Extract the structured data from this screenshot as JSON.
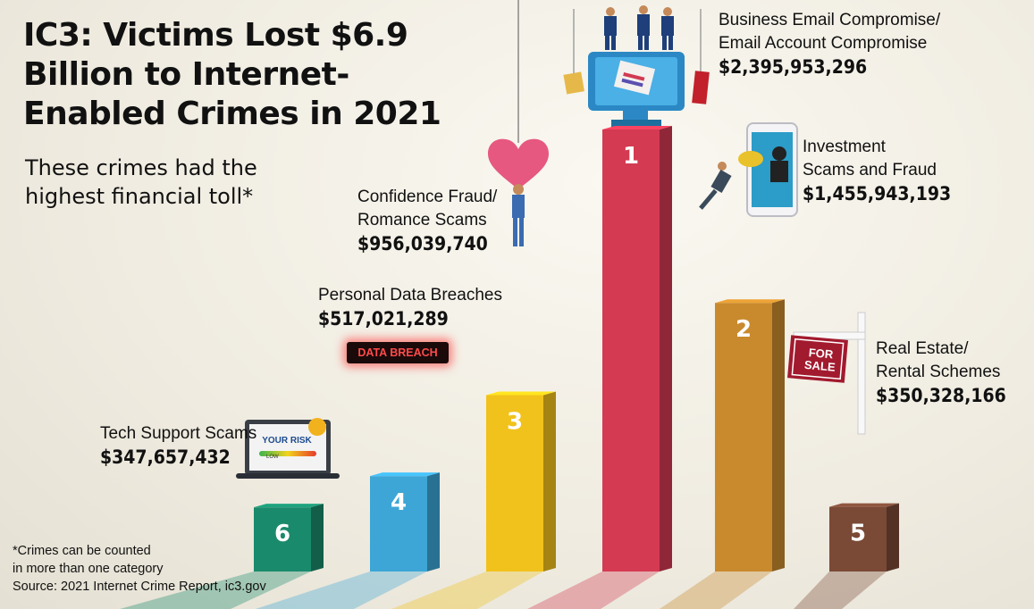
{
  "title": "IC3: Victims Lost $6.9 Billion to Internet-Enabled Crimes in 2021",
  "subtitle": "These crimes had the highest financial toll*",
  "footnote_1": "*Crimes can be counted",
  "footnote_2": "in more than one category",
  "source": "Source: 2021 Internet Crime Report, ic3.gov",
  "badges": {
    "data_breach": "DATA BREACH",
    "your_risk": "YOUR RISK",
    "low": "LOW",
    "for_sale": "FOR SALE"
  },
  "chart_data": {
    "type": "bar",
    "categories": [
      "Tech Support Scams",
      "Personal Data Breaches",
      "Confidence Fraud/ Romance Scams",
      "Business Email Compromise/ Email Account Compromise",
      "Investment Scams and Fraud",
      "Real Estate/ Rental Schemes"
    ],
    "ranks": [
      "6",
      "4",
      "3",
      "1",
      "2",
      "5"
    ],
    "values": [
      347657432,
      517021289,
      956039740,
      2395953296,
      1455943193,
      350328166
    ],
    "value_labels": [
      "$347,657,432",
      "$517,021,289",
      "$956,039,740",
      "$2,395,953,296",
      "$1,455,943,193",
      "$350,328,166"
    ],
    "label_lines": [
      [
        "Tech Support Scams"
      ],
      [
        "Personal Data Breaches"
      ],
      [
        "Confidence Fraud/",
        "Romance Scams"
      ],
      [
        "Business Email Compromise/",
        "Email Account Compromise"
      ],
      [
        "Investment",
        "Scams and Fraud"
      ],
      [
        "Real Estate/",
        "Rental Schemes"
      ]
    ],
    "colors": [
      "#1a8a6c",
      "#3da6d6",
      "#f2c21c",
      "#d43a52",
      "#c98a2e",
      "#7a4a36"
    ]
  }
}
